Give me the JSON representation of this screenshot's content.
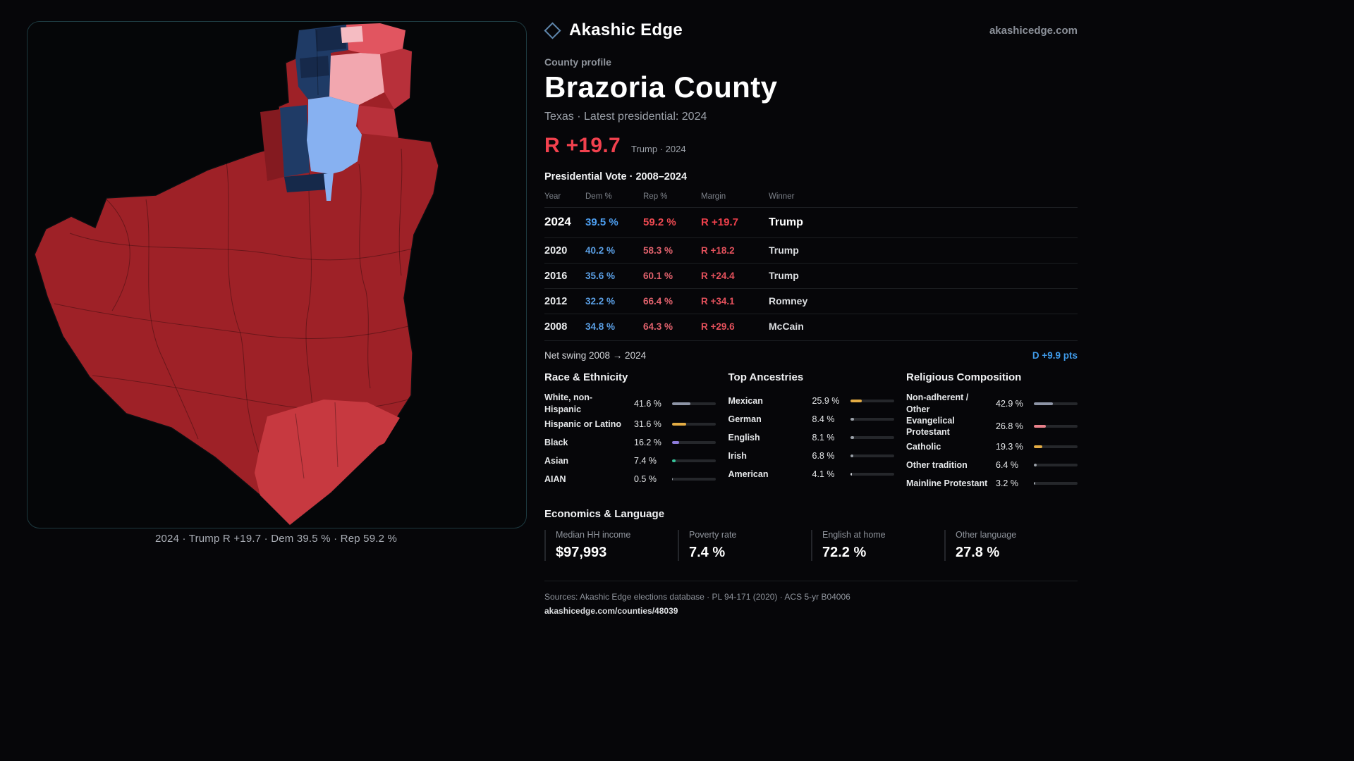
{
  "brand": {
    "name": "Akashic Edge",
    "domain": "akashicedge.com"
  },
  "profile": {
    "kicker": "County profile",
    "title": "Brazoria County",
    "subtitle": "Texas · Latest presidential: 2024",
    "margin_value": "R +19.7",
    "margin_context": "Trump · 2024"
  },
  "vote_table": {
    "title": "Presidential Vote · 2008–2024",
    "columns": [
      "Year",
      "Dem %",
      "Rep %",
      "Margin",
      "Winner"
    ],
    "rows": [
      {
        "year": "2024",
        "dem": "39.5 %",
        "rep": "59.2 %",
        "margin": "R +19.7",
        "winner": "Trump"
      },
      {
        "year": "2020",
        "dem": "40.2 %",
        "rep": "58.3 %",
        "margin": "R +18.2",
        "winner": "Trump"
      },
      {
        "year": "2016",
        "dem": "35.6 %",
        "rep": "60.1 %",
        "margin": "R +24.4",
        "winner": "Trump"
      },
      {
        "year": "2012",
        "dem": "32.2 %",
        "rep": "66.4 %",
        "margin": "R +34.1",
        "winner": "Romney"
      },
      {
        "year": "2008",
        "dem": "34.8 %",
        "rep": "64.3 %",
        "margin": "R +29.6",
        "winner": "McCain"
      }
    ]
  },
  "swing": {
    "label": "Net swing 2008 → 2024",
    "value": "D +9.9 pts"
  },
  "demographics": {
    "race": {
      "title": "Race & Ethnicity",
      "items": [
        {
          "label": "White, non-Hispanic",
          "value": "41.6 %",
          "pct": 41.6,
          "color": "#8d94a6"
        },
        {
          "label": "Hispanic or Latino",
          "value": "31.6 %",
          "pct": 31.6,
          "color": "#e3ac44"
        },
        {
          "label": "Black",
          "value": "16.2 %",
          "pct": 16.2,
          "color": "#8d7bdb"
        },
        {
          "label": "Asian",
          "value": "7.4 %",
          "pct": 7.4,
          "color": "#35c49a"
        },
        {
          "label": "AIAN",
          "value": "0.5 %",
          "pct": 0.5,
          "color": "#9aa0a8"
        }
      ]
    },
    "ancestries": {
      "title": "Top Ancestries",
      "items": [
        {
          "label": "Mexican",
          "value": "25.9 %",
          "pct": 25.9,
          "color": "#e3ac44"
        },
        {
          "label": "German",
          "value": "8.4 %",
          "pct": 8.4,
          "color": "#9aa0a8"
        },
        {
          "label": "English",
          "value": "8.1 %",
          "pct": 8.1,
          "color": "#9aa0a8"
        },
        {
          "label": "Irish",
          "value": "6.8 %",
          "pct": 6.8,
          "color": "#9aa0a8"
        },
        {
          "label": "American",
          "value": "4.1 %",
          "pct": 4.1,
          "color": "#c9cdd3"
        }
      ]
    },
    "religion": {
      "title": "Religious Composition",
      "items": [
        {
          "label": "Non-adherent / Other",
          "value": "42.9 %",
          "pct": 42.9,
          "color": "#8d94a6"
        },
        {
          "label": "Evangelical Protestant",
          "value": "26.8 %",
          "pct": 26.8,
          "color": "#e8808a"
        },
        {
          "label": "Catholic",
          "value": "19.3 %",
          "pct": 19.3,
          "color": "#e3ac44"
        },
        {
          "label": "Other tradition",
          "value": "6.4 %",
          "pct": 6.4,
          "color": "#9aa0a8"
        },
        {
          "label": "Mainline Protestant",
          "value": "3.2 %",
          "pct": 3.2,
          "color": "#9aa0a8"
        }
      ]
    }
  },
  "economics": {
    "title": "Economics & Language",
    "stats": [
      {
        "label": "Median HH income",
        "value": "$97,993"
      },
      {
        "label": "Poverty rate",
        "value": "7.4 %"
      },
      {
        "label": "English at home",
        "value": "72.2 %"
      },
      {
        "label": "Other language",
        "value": "27.8 %"
      }
    ]
  },
  "footer": {
    "sources": "Sources: Akashic Edge elections database · PL 94-171 (2020) · ACS 5-yr B04006",
    "permalink": "akashicedge.com/counties/48039"
  },
  "map": {
    "caption": "2024 · Trump  R +19.7 · Dem 39.5 % · Rep 59.2 %",
    "palette": {
      "strong_rep": "#9e2127",
      "rep": "#c73940",
      "lean_rep": "#f2a7af",
      "lean_dem": "#87b1f1",
      "dem": "#1f3b66",
      "dem_dark": "#16294a"
    }
  }
}
